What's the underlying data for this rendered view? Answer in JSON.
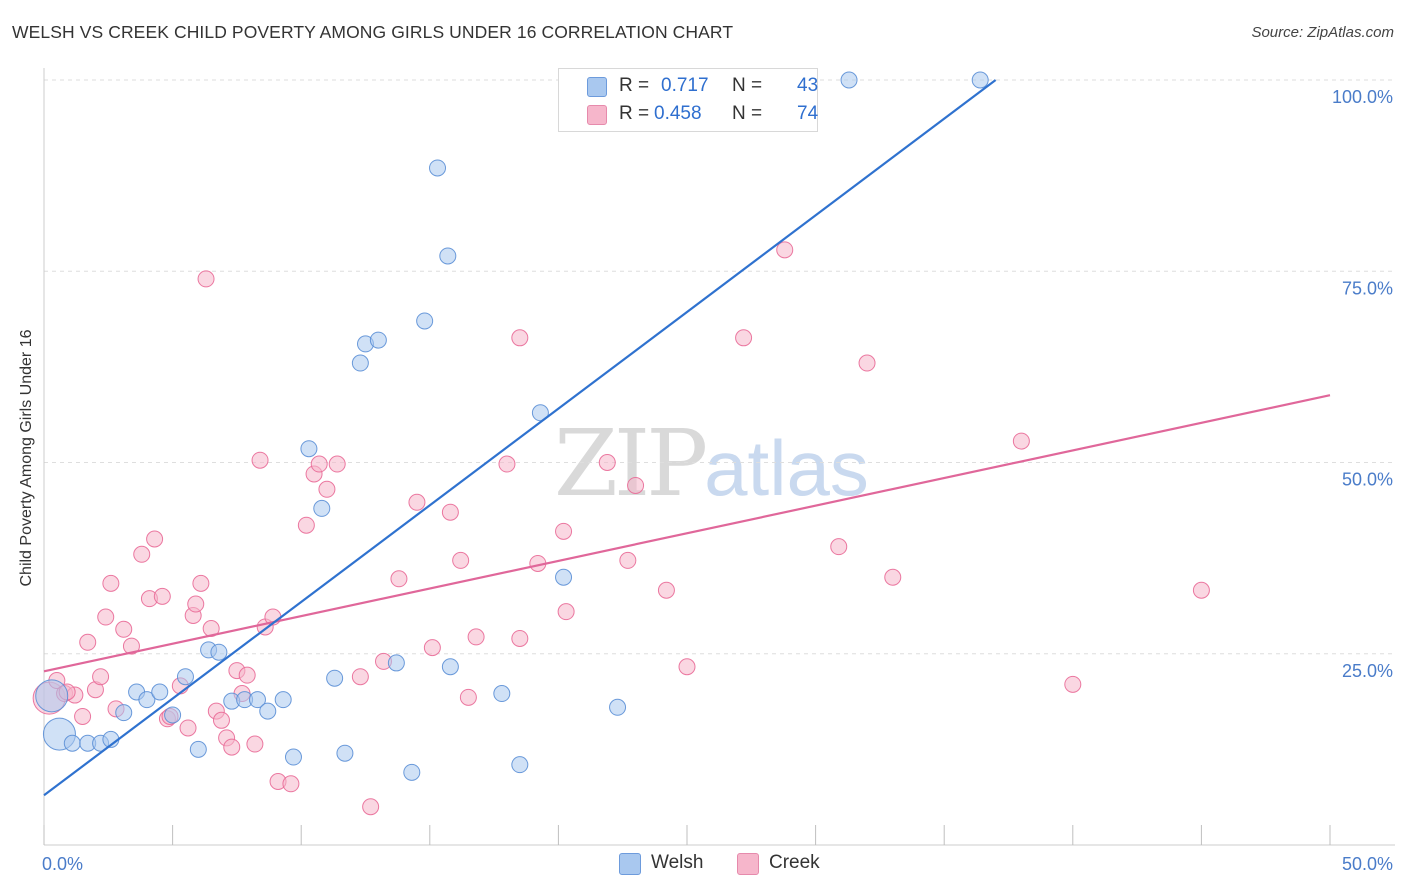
{
  "title": "WELSH VS CREEK CHILD POVERTY AMONG GIRLS UNDER 16 CORRELATION CHART",
  "source": "Source: ZipAtlas.com",
  "watermark": {
    "zip": "ZIP",
    "atlas": "atlas"
  },
  "legend": {
    "r_label": "R =",
    "n_label": "N =",
    "welsh": {
      "r": "0.717",
      "n": "43",
      "color": "#a9c8ef"
    },
    "creek": {
      "r": "0.458",
      "n": "74",
      "color": "#f6b6cb"
    }
  },
  "chart_data": {
    "type": "scatter",
    "title": "WELSH VS CREEK CHILD POVERTY AMONG GIRLS UNDER 16 CORRELATION CHART",
    "xlabel": "",
    "ylabel": "Child Poverty Among Girls Under 16",
    "xlim": [
      0,
      50
    ],
    "ylim": [
      0,
      100
    ],
    "x_ticks": [
      "0.0%",
      "50.0%"
    ],
    "y_ticks": [
      "25.0%",
      "50.0%",
      "75.0%",
      "100.0%"
    ],
    "grid": "horizontal dashed",
    "legend_position": "bottom",
    "series": [
      {
        "name": "Welsh",
        "color": "#5b8fd6",
        "fill": "#a9c8ef",
        "trend": {
          "x": [
            0,
            37.0
          ],
          "y": [
            6.5,
            100
          ]
        },
        "points": [
          [
            0.3,
            19.5
          ],
          [
            0.6,
            14.5
          ],
          [
            1.1,
            13.3
          ],
          [
            1.7,
            13.3
          ],
          [
            2.2,
            13.3
          ],
          [
            2.6,
            13.8
          ],
          [
            3.1,
            17.3
          ],
          [
            3.6,
            20.0
          ],
          [
            4.0,
            19.0
          ],
          [
            4.5,
            20.0
          ],
          [
            5.0,
            17.0
          ],
          [
            5.5,
            22.0
          ],
          [
            6.0,
            12.5
          ],
          [
            6.4,
            25.5
          ],
          [
            6.8,
            25.2
          ],
          [
            7.3,
            18.8
          ],
          [
            7.8,
            19.0
          ],
          [
            8.3,
            19.0
          ],
          [
            8.7,
            17.5
          ],
          [
            9.3,
            19.0
          ],
          [
            9.7,
            11.5
          ],
          [
            10.3,
            51.8
          ],
          [
            10.8,
            44.0
          ],
          [
            11.3,
            21.8
          ],
          [
            11.7,
            12.0
          ],
          [
            12.3,
            63.0
          ],
          [
            12.5,
            65.5
          ],
          [
            13.0,
            66.0
          ],
          [
            13.7,
            23.8
          ],
          [
            14.3,
            9.5
          ],
          [
            14.8,
            68.5
          ],
          [
            15.3,
            88.5
          ],
          [
            15.7,
            77.0
          ],
          [
            15.8,
            23.3
          ],
          [
            17.8,
            19.8
          ],
          [
            18.5,
            10.5
          ],
          [
            19.3,
            56.5
          ],
          [
            20.2,
            35.0
          ],
          [
            22.3,
            18.0
          ],
          [
            26.0,
            100
          ],
          [
            26.5,
            100
          ],
          [
            31.3,
            100
          ],
          [
            36.4,
            100
          ]
        ],
        "sizes_large": [
          [
            0.3,
            19.5
          ],
          [
            0.6,
            14.5
          ]
        ]
      },
      {
        "name": "Creek",
        "color": "#e96a97",
        "fill": "#f6b6cb",
        "trend": {
          "x": [
            0,
            50
          ],
          "y": [
            22.7,
            58.8
          ]
        },
        "points": [
          [
            0.2,
            19.2
          ],
          [
            0.5,
            21.5
          ],
          [
            0.8,
            19.8
          ],
          [
            1.2,
            19.6
          ],
          [
            1.5,
            16.8
          ],
          [
            1.7,
            26.5
          ],
          [
            2.0,
            20.3
          ],
          [
            2.2,
            22.0
          ],
          [
            2.4,
            29.8
          ],
          [
            2.6,
            34.2
          ],
          [
            2.8,
            17.8
          ],
          [
            3.1,
            28.2
          ],
          [
            3.4,
            26.0
          ],
          [
            3.8,
            38.0
          ],
          [
            4.1,
            32.2
          ],
          [
            4.3,
            40.0
          ],
          [
            4.6,
            32.5
          ],
          [
            4.8,
            16.5
          ],
          [
            5.3,
            20.8
          ],
          [
            5.6,
            15.3
          ],
          [
            5.8,
            30.0
          ],
          [
            6.1,
            34.2
          ],
          [
            6.3,
            74.0
          ],
          [
            6.5,
            28.3
          ],
          [
            6.7,
            17.5
          ],
          [
            6.9,
            16.3
          ],
          [
            7.1,
            14.0
          ],
          [
            7.3,
            12.8
          ],
          [
            7.5,
            22.8
          ],
          [
            7.7,
            19.8
          ],
          [
            7.9,
            22.2
          ],
          [
            8.2,
            13.2
          ],
          [
            8.4,
            50.3
          ],
          [
            8.6,
            28.5
          ],
          [
            8.9,
            29.8
          ],
          [
            9.1,
            8.3
          ],
          [
            9.6,
            8.0
          ],
          [
            10.2,
            41.8
          ],
          [
            10.5,
            48.5
          ],
          [
            10.7,
            49.8
          ],
          [
            11.0,
            46.5
          ],
          [
            11.4,
            49.8
          ],
          [
            12.3,
            22.0
          ],
          [
            12.7,
            5.0
          ],
          [
            13.2,
            24.0
          ],
          [
            13.8,
            34.8
          ],
          [
            14.5,
            44.8
          ],
          [
            15.1,
            25.8
          ],
          [
            15.8,
            43.5
          ],
          [
            16.2,
            37.2
          ],
          [
            16.5,
            19.3
          ],
          [
            16.8,
            27.2
          ],
          [
            18.0,
            49.8
          ],
          [
            18.5,
            66.3
          ],
          [
            18.5,
            27.0
          ],
          [
            19.2,
            36.8
          ],
          [
            20.3,
            30.5
          ],
          [
            20.2,
            41.0
          ],
          [
            21.9,
            50.0
          ],
          [
            22.7,
            37.2
          ],
          [
            23.0,
            47.0
          ],
          [
            24.2,
            33.3
          ],
          [
            25.0,
            23.3
          ],
          [
            27.2,
            66.3
          ],
          [
            28.8,
            77.8
          ],
          [
            30.9,
            39.0
          ],
          [
            32.0,
            63.0
          ],
          [
            33.0,
            35.0
          ],
          [
            38.0,
            52.8
          ],
          [
            40.0,
            21.0
          ],
          [
            45.0,
            33.3
          ],
          [
            0.9,
            20.0
          ],
          [
            5.9,
            31.5
          ],
          [
            4.9,
            16.8
          ]
        ],
        "sizes_large": [
          [
            0.2,
            19.2
          ]
        ]
      }
    ]
  }
}
